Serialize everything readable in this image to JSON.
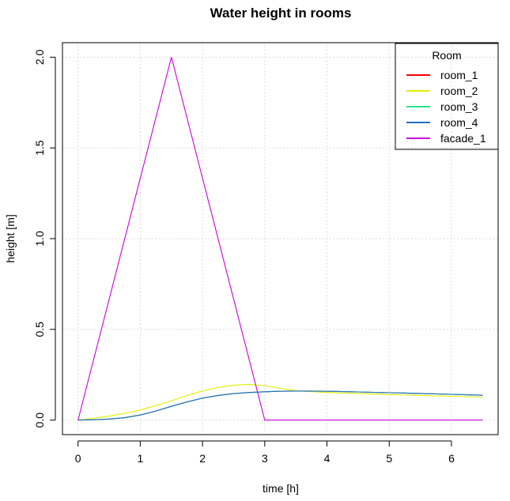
{
  "chart_data": {
    "type": "line",
    "title": "Water height in rooms",
    "xlabel": "time [h]",
    "ylabel": "height [m]",
    "xlim": [
      -0.25,
      6.75
    ],
    "ylim": [
      -0.08,
      2.08
    ],
    "xticks": [
      0,
      1,
      2,
      3,
      4,
      5,
      6
    ],
    "yticks": [
      0.0,
      0.5,
      1.0,
      1.5,
      2.0
    ],
    "ytick_labels": [
      "0.0",
      "0.5",
      "1.0",
      "1.5",
      "2.0"
    ],
    "grid": true,
    "legend": {
      "title": "Room",
      "position": "top-right"
    },
    "series": [
      {
        "name": "room_1",
        "color": "#ff0000",
        "x": [
          0,
          0.25,
          0.5,
          0.75,
          1.0,
          1.25,
          1.5,
          1.75,
          2.0,
          2.25,
          2.5,
          2.75,
          3.0,
          3.25,
          3.5,
          4.0,
          4.5,
          5.0,
          5.5,
          6.0,
          6.5
        ],
        "y": [
          0.0,
          0.002,
          0.006,
          0.013,
          0.028,
          0.05,
          0.076,
          0.1,
          0.121,
          0.136,
          0.146,
          0.152,
          0.156,
          0.159,
          0.16,
          0.159,
          0.155,
          0.151,
          0.147,
          0.142,
          0.137
        ]
      },
      {
        "name": "room_2",
        "color": "#e0f000",
        "x": [
          0,
          0.25,
          0.5,
          0.75,
          1.0,
          1.25,
          1.5,
          1.75,
          2.0,
          2.25,
          2.5,
          2.75,
          3.0,
          3.25,
          3.5,
          4.0,
          4.5,
          5.0,
          5.5,
          6.0,
          6.5
        ],
        "y": [
          0.0,
          0.01,
          0.022,
          0.037,
          0.056,
          0.08,
          0.107,
          0.135,
          0.16,
          0.18,
          0.193,
          0.197,
          0.19,
          0.175,
          0.162,
          0.152,
          0.146,
          0.141,
          0.136,
          0.131,
          0.127
        ]
      },
      {
        "name": "room_3",
        "color": "#22e88a",
        "x": [
          0,
          0.25,
          0.5,
          0.75,
          1.0,
          1.25,
          1.5,
          1.75,
          2.0,
          2.25,
          2.5,
          2.75,
          3.0,
          3.25,
          3.5,
          4.0,
          4.5,
          5.0,
          5.5,
          6.0,
          6.5
        ],
        "y": [
          0.0,
          0.002,
          0.006,
          0.013,
          0.028,
          0.05,
          0.076,
          0.1,
          0.121,
          0.136,
          0.146,
          0.152,
          0.156,
          0.159,
          0.16,
          0.159,
          0.155,
          0.151,
          0.147,
          0.142,
          0.137
        ]
      },
      {
        "name": "room_4",
        "color": "#1f6fc2",
        "x": [
          0,
          0.25,
          0.5,
          0.75,
          1.0,
          1.25,
          1.5,
          1.75,
          2.0,
          2.25,
          2.5,
          2.75,
          3.0,
          3.25,
          3.5,
          4.0,
          4.5,
          5.0,
          5.5,
          6.0,
          6.5
        ],
        "y": [
          0.0,
          0.002,
          0.006,
          0.013,
          0.028,
          0.05,
          0.076,
          0.1,
          0.121,
          0.136,
          0.146,
          0.152,
          0.156,
          0.159,
          0.16,
          0.159,
          0.155,
          0.151,
          0.147,
          0.142,
          0.137
        ]
      },
      {
        "name": "facade_1",
        "color": "#cc00e0",
        "x": [
          0,
          1.5,
          3.0,
          6.5
        ],
        "y": [
          0.0,
          2.0,
          0.0,
          0.0
        ]
      }
    ]
  }
}
